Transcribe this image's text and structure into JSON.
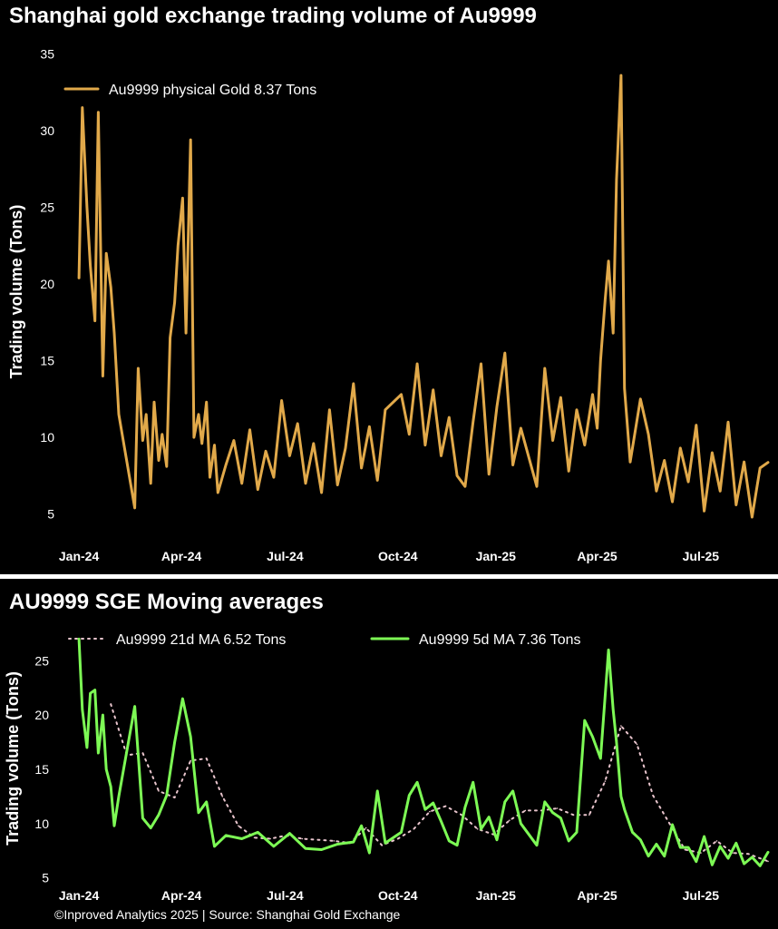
{
  "colors": {
    "background": "#000000",
    "gold": "#e1a94a",
    "green": "#7dfa55",
    "ma21": "#e8c4cc"
  },
  "footer": "©Inproved Analytics 2025 | Source: Shanghai Gold Exchange",
  "chart_data": [
    {
      "type": "line",
      "title": "Shanghai gold exchange trading volume of Au9999",
      "xlabel": "",
      "ylabel": "Trading volume (Tons)",
      "ylim": [
        3.5,
        35.5
      ],
      "xlim": [
        "2023-12-21",
        "2025-09-02"
      ],
      "yticks": [
        5,
        10,
        15,
        20,
        25,
        30,
        35
      ],
      "xticks": [
        {
          "label": "Jan-24",
          "date": "2024-01-02"
        },
        {
          "label": "Apr-24",
          "date": "2024-04-01"
        },
        {
          "label": "Jul-24",
          "date": "2024-07-01"
        },
        {
          "label": "Oct-24",
          "date": "2024-10-08"
        },
        {
          "label": "Jan-25",
          "date": "2025-01-02"
        },
        {
          "label": "Apr-25",
          "date": "2025-04-01"
        },
        {
          "label": "Jul-25",
          "date": "2025-07-01"
        }
      ],
      "legend": "top-left",
      "grid": false,
      "series": [
        {
          "name": "Au9999 physical Gold 8.37 Tons",
          "x": [
            "2024-01-02",
            "2024-01-05",
            "2024-01-09",
            "2024-01-12",
            "2024-01-16",
            "2024-01-19",
            "2024-01-23",
            "2024-01-26",
            "2024-01-30",
            "2024-02-02",
            "2024-02-06",
            "2024-02-20",
            "2024-02-23",
            "2024-02-27",
            "2024-03-01",
            "2024-03-05",
            "2024-03-08",
            "2024-03-12",
            "2024-03-15",
            "2024-03-19",
            "2024-03-22",
            "2024-03-26",
            "2024-03-29",
            "2024-04-02",
            "2024-04-05",
            "2024-04-09",
            "2024-04-12",
            "2024-04-16",
            "2024-04-19",
            "2024-04-23",
            "2024-04-26",
            "2024-04-30",
            "2024-05-03",
            "2024-05-10",
            "2024-05-17",
            "2024-05-24",
            "2024-05-31",
            "2024-06-07",
            "2024-06-14",
            "2024-06-21",
            "2024-06-28",
            "2024-07-05",
            "2024-07-12",
            "2024-07-19",
            "2024-07-26",
            "2024-08-02",
            "2024-08-09",
            "2024-08-16",
            "2024-08-23",
            "2024-08-30",
            "2024-09-06",
            "2024-09-13",
            "2024-09-20",
            "2024-09-27",
            "2024-10-11",
            "2024-10-18",
            "2024-10-25",
            "2024-11-01",
            "2024-11-08",
            "2024-11-15",
            "2024-11-22",
            "2024-11-29",
            "2024-12-06",
            "2024-12-13",
            "2024-12-20",
            "2024-12-27",
            "2025-01-03",
            "2025-01-10",
            "2025-01-17",
            "2025-01-24",
            "2025-02-07",
            "2025-02-14",
            "2025-02-21",
            "2025-02-28",
            "2025-03-07",
            "2025-03-14",
            "2025-03-21",
            "2025-03-28",
            "2025-04-01",
            "2025-04-04",
            "2025-04-08",
            "2025-04-11",
            "2025-04-15",
            "2025-04-18",
            "2025-04-22",
            "2025-04-25",
            "2025-04-30",
            "2025-05-09",
            "2025-05-16",
            "2025-05-23",
            "2025-05-30",
            "2025-06-06",
            "2025-06-13",
            "2025-06-20",
            "2025-06-27",
            "2025-07-04",
            "2025-07-11",
            "2025-07-18",
            "2025-07-25",
            "2025-08-01",
            "2025-08-08",
            "2025-08-15",
            "2025-08-22",
            "2025-08-29"
          ],
          "values": [
            20.4,
            31.5,
            25.0,
            21.2,
            17.6,
            31.2,
            14.0,
            22.0,
            19.8,
            16.8,
            11.5,
            5.4,
            14.5,
            9.8,
            11.5,
            7.0,
            12.3,
            8.5,
            10.2,
            8.1,
            16.5,
            18.8,
            22.5,
            25.6,
            16.8,
            29.4,
            10.0,
            11.5,
            9.6,
            12.3,
            7.4,
            9.5,
            6.4,
            8.2,
            9.8,
            7.0,
            10.5,
            6.6,
            9.1,
            7.4,
            12.4,
            8.8,
            10.9,
            7.0,
            9.6,
            6.4,
            11.8,
            6.9,
            9.3,
            13.5,
            8.0,
            10.7,
            7.2,
            11.8,
            12.8,
            10.2,
            14.8,
            9.5,
            13.1,
            8.8,
            11.3,
            7.5,
            6.8,
            11.0,
            14.8,
            7.6,
            12.0,
            15.5,
            8.2,
            10.6,
            6.8,
            14.5,
            9.8,
            12.6,
            7.8,
            11.8,
            9.5,
            12.8,
            10.6,
            15.0,
            19.0,
            21.5,
            16.8,
            26.8,
            33.6,
            13.2,
            8.4,
            12.5,
            10.2,
            6.5,
            8.5,
            5.8,
            9.3,
            7.1,
            10.8,
            5.2,
            9.0,
            6.5,
            11.0,
            5.6,
            8.4,
            4.8,
            8.0,
            8.37
          ]
        }
      ]
    },
    {
      "type": "line",
      "title": "AU9999 SGE Moving averages",
      "xlabel": "",
      "ylabel": "Trading volume (Tons)",
      "ylim": [
        4.8,
        27.2
      ],
      "xlim": [
        "2023-12-21",
        "2025-09-02"
      ],
      "yticks": [
        5,
        10,
        15,
        20,
        25
      ],
      "xticks": [
        {
          "label": "Jan-24",
          "date": "2024-01-02"
        },
        {
          "label": "Apr-24",
          "date": "2024-04-01"
        },
        {
          "label": "Jul-24",
          "date": "2024-07-01"
        },
        {
          "label": "Oct-24",
          "date": "2024-10-08"
        },
        {
          "label": "Jan-25",
          "date": "2025-01-02"
        },
        {
          "label": "Apr-25",
          "date": "2025-04-01"
        },
        {
          "label": "Jul-25",
          "date": "2025-07-01"
        }
      ],
      "legend": "top-center",
      "grid": false,
      "series": [
        {
          "name": "Au9999 21d MA 6.52 Tons",
          "style": "dotted",
          "x": [
            "2024-01-30",
            "2024-02-13",
            "2024-02-27",
            "2024-03-12",
            "2024-03-26",
            "2024-04-09",
            "2024-04-23",
            "2024-05-07",
            "2024-05-21",
            "2024-06-04",
            "2024-06-18",
            "2024-07-02",
            "2024-07-16",
            "2024-07-30",
            "2024-08-13",
            "2024-08-27",
            "2024-09-10",
            "2024-09-24",
            "2024-10-08",
            "2024-10-22",
            "2024-11-05",
            "2024-11-19",
            "2024-12-03",
            "2024-12-17",
            "2024-12-31",
            "2025-01-14",
            "2025-01-28",
            "2025-02-11",
            "2025-02-25",
            "2025-03-11",
            "2025-03-25",
            "2025-04-08",
            "2025-04-22",
            "2025-05-06",
            "2025-05-20",
            "2025-06-03",
            "2025-06-17",
            "2025-07-01",
            "2025-07-15",
            "2025-07-29",
            "2025-08-12",
            "2025-08-29"
          ],
          "values": [
            21.0,
            16.3,
            16.5,
            13.0,
            12.4,
            15.8,
            16.0,
            12.5,
            9.8,
            8.7,
            8.6,
            8.9,
            8.6,
            8.5,
            8.4,
            8.2,
            9.6,
            8.0,
            8.6,
            9.5,
            11.1,
            11.6,
            10.8,
            9.5,
            9.0,
            10.3,
            11.2,
            11.2,
            11.4,
            10.8,
            10.8,
            13.9,
            19.0,
            17.3,
            12.6,
            10.1,
            7.6,
            7.3,
            8.4,
            7.3,
            7.2,
            6.52
          ]
        },
        {
          "name": "Au9999 5d MA 7.36 Tons",
          "style": "solid",
          "x": [
            "2024-01-02",
            "2024-01-05",
            "2024-01-09",
            "2024-01-12",
            "2024-01-16",
            "2024-01-19",
            "2024-01-23",
            "2024-01-26",
            "2024-01-30",
            "2024-02-02",
            "2024-02-06",
            "2024-02-20",
            "2024-02-27",
            "2024-03-05",
            "2024-03-12",
            "2024-03-19",
            "2024-03-26",
            "2024-04-02",
            "2024-04-09",
            "2024-04-16",
            "2024-04-23",
            "2024-04-30",
            "2024-05-10",
            "2024-05-24",
            "2024-06-07",
            "2024-06-21",
            "2024-07-05",
            "2024-07-19",
            "2024-08-02",
            "2024-08-16",
            "2024-08-30",
            "2024-09-06",
            "2024-09-13",
            "2024-09-20",
            "2024-09-27",
            "2024-10-11",
            "2024-10-18",
            "2024-10-25",
            "2024-11-01",
            "2024-11-08",
            "2024-11-15",
            "2024-11-22",
            "2024-11-29",
            "2024-12-06",
            "2024-12-13",
            "2024-12-20",
            "2024-12-27",
            "2025-01-03",
            "2025-01-10",
            "2025-01-17",
            "2025-01-24",
            "2025-02-07",
            "2025-02-14",
            "2025-02-21",
            "2025-02-28",
            "2025-03-07",
            "2025-03-14",
            "2025-03-21",
            "2025-03-28",
            "2025-04-04",
            "2025-04-11",
            "2025-04-15",
            "2025-04-18",
            "2025-04-22",
            "2025-04-25",
            "2025-05-02",
            "2025-05-09",
            "2025-05-16",
            "2025-05-23",
            "2025-05-30",
            "2025-06-06",
            "2025-06-13",
            "2025-06-20",
            "2025-06-27",
            "2025-07-04",
            "2025-07-11",
            "2025-07-18",
            "2025-07-25",
            "2025-08-01",
            "2025-08-08",
            "2025-08-15",
            "2025-08-22",
            "2025-08-29"
          ],
          "values": [
            27.0,
            20.5,
            17.0,
            22.0,
            22.3,
            16.5,
            20.0,
            15.0,
            13.4,
            9.8,
            12.5,
            20.8,
            10.5,
            9.6,
            10.8,
            12.6,
            17.5,
            21.5,
            18.0,
            11.0,
            12.0,
            7.9,
            8.9,
            8.6,
            9.2,
            7.9,
            9.1,
            7.7,
            7.6,
            8.1,
            8.3,
            9.8,
            7.3,
            13.0,
            8.2,
            9.2,
            12.6,
            13.8,
            11.3,
            11.9,
            10.2,
            8.4,
            8.0,
            11.5,
            13.8,
            9.5,
            10.6,
            8.5,
            12.0,
            13.0,
            10.0,
            8.0,
            12.0,
            11.0,
            10.5,
            8.4,
            9.2,
            19.5,
            18.0,
            16.0,
            26.0,
            20.5,
            17.5,
            12.5,
            11.3,
            9.2,
            8.5,
            7.0,
            8.1,
            7.0,
            9.9,
            7.8,
            7.8,
            6.5,
            8.8,
            6.2,
            7.9,
            6.8,
            8.2,
            6.3,
            6.9,
            6.1,
            7.36
          ]
        }
      ]
    }
  ]
}
